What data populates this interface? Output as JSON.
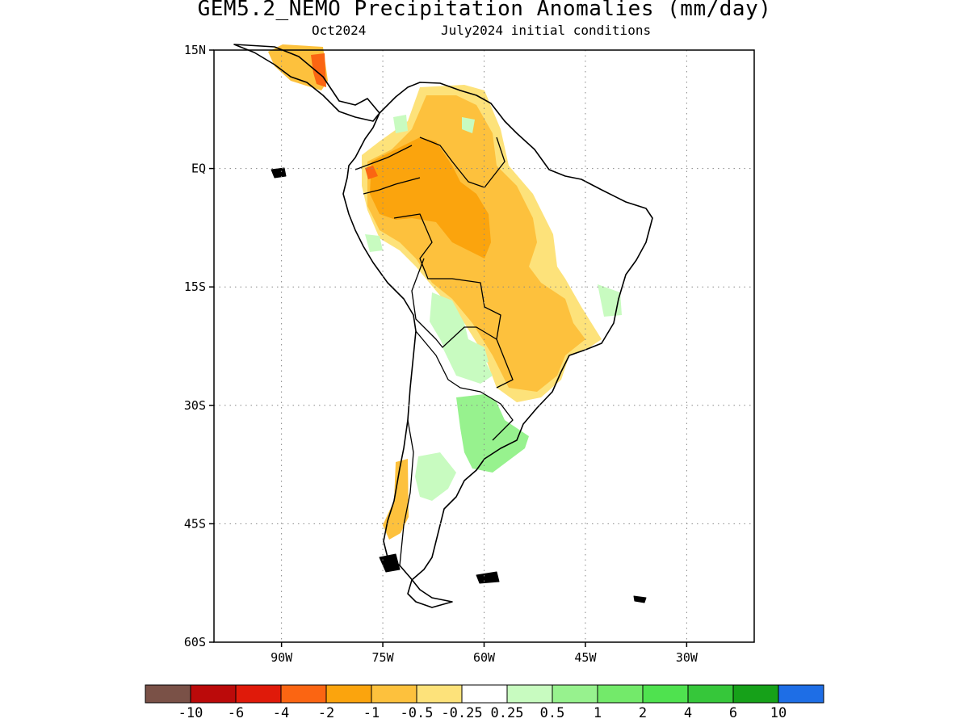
{
  "title": "GEM5.2_NEMO Precipitation Anomalies (mm/day)",
  "subtitle_left": "Oct2024",
  "subtitle_right": "July2024 initial conditions",
  "map": {
    "lon_range": [
      -100,
      -20
    ],
    "lat_range": [
      -60,
      15
    ],
    "lat_ticks": [
      {
        "lat": 15,
        "label": "15N"
      },
      {
        "lat": 0,
        "label": "EQ"
      },
      {
        "lat": -15,
        "label": "15S"
      },
      {
        "lat": -30,
        "label": "30S"
      },
      {
        "lat": -45,
        "label": "45S"
      },
      {
        "lat": -60,
        "label": "60S"
      }
    ],
    "lon_ticks": [
      {
        "lon": -90,
        "label": "90W"
      },
      {
        "lon": -75,
        "label": "75W"
      },
      {
        "lon": -60,
        "label": "60W"
      },
      {
        "lon": -45,
        "label": "45W"
      },
      {
        "lon": -30,
        "label": "30W"
      }
    ],
    "grid": "dotted"
  },
  "colorbar": {
    "colors": [
      "#7a5147",
      "#bb0a0a",
      "#e01a0a",
      "#fb6512",
      "#fba40d",
      "#fdc13d",
      "#fde27a",
      "#ffffff",
      "#c8fbc0",
      "#97f28e",
      "#73ea6a",
      "#4fe24f",
      "#36c73a",
      "#16a119",
      "#1e6ee6"
    ],
    "labels": [
      "-10",
      "-6",
      "-4",
      "-2",
      "-1",
      "-0.5",
      "-0.25",
      "0.25",
      "0.5",
      "1",
      "2",
      "4",
      "6",
      "10"
    ]
  }
}
